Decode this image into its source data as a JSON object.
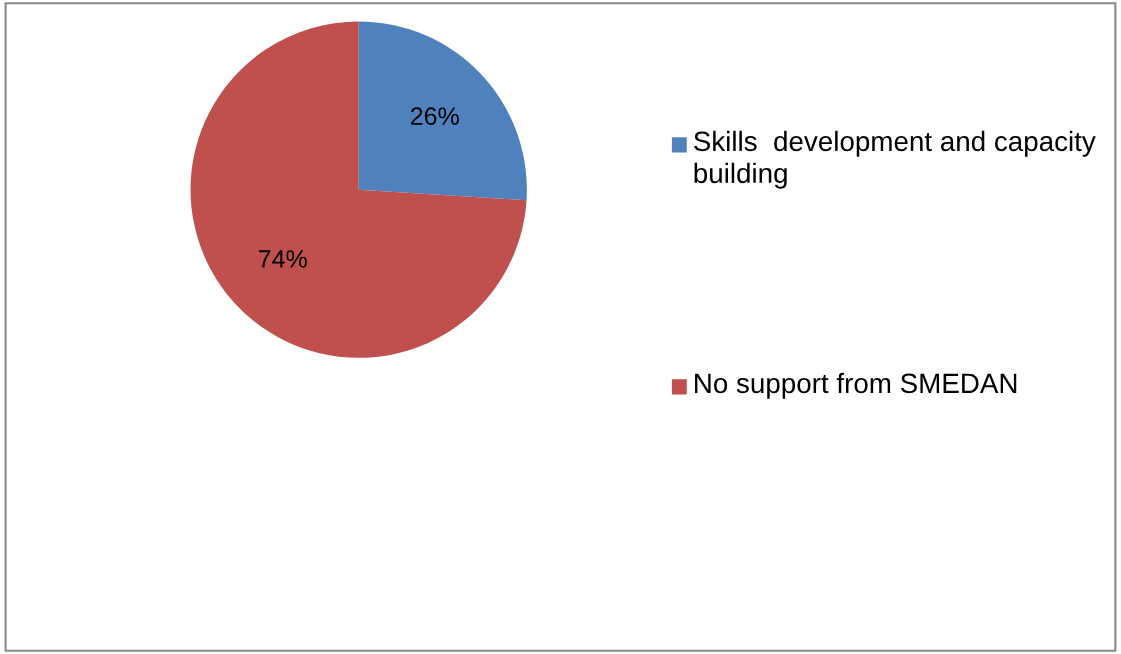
{
  "chart_data": {
    "type": "pie",
    "categories": [
      "Skills  development and capacity building",
      "No support from SMEDAN"
    ],
    "values": [
      26,
      74
    ],
    "colors": [
      "#4f81bd",
      "#c0504d"
    ],
    "value_labels": [
      "26%",
      "74%"
    ],
    "legend": "right"
  }
}
